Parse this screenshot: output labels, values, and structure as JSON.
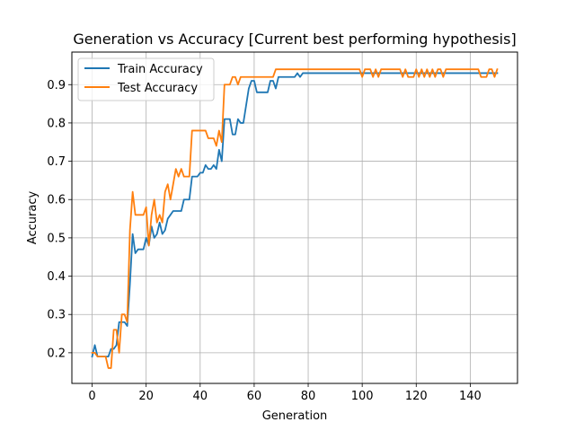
{
  "chart_data": {
    "type": "line",
    "title": "Generation vs Accuracy [Current best performing hypothesis]",
    "xlabel": "Generation",
    "ylabel": "Accuracy",
    "xlim": [
      -7.5,
      157.5
    ],
    "ylim": [
      0.12,
      0.985
    ],
    "xticks": [
      0,
      20,
      40,
      60,
      80,
      100,
      120,
      140
    ],
    "yticks": [
      0.2,
      0.3,
      0.4,
      0.5,
      0.6,
      0.7,
      0.8,
      0.9
    ],
    "ytick_labels": [
      "0.2",
      "0.3",
      "0.4",
      "0.5",
      "0.6",
      "0.7",
      "0.8",
      "0.9"
    ],
    "grid": true,
    "legend_position": "top-left",
    "series": [
      {
        "name": "Train Accuracy",
        "color": "#1f77b4",
        "points": [
          [
            0,
            0.19
          ],
          [
            1,
            0.22
          ],
          [
            2,
            0.19
          ],
          [
            6,
            0.19
          ],
          [
            7,
            0.21
          ],
          [
            8,
            0.21
          ],
          [
            9,
            0.22
          ],
          [
            10,
            0.28
          ],
          [
            12,
            0.28
          ],
          [
            13,
            0.27
          ],
          [
            14,
            0.38
          ],
          [
            15,
            0.51
          ],
          [
            16,
            0.46
          ],
          [
            17,
            0.47
          ],
          [
            19,
            0.47
          ],
          [
            20,
            0.5
          ],
          [
            21,
            0.48
          ],
          [
            22,
            0.53
          ],
          [
            23,
            0.5
          ],
          [
            24,
            0.51
          ],
          [
            25,
            0.54
          ],
          [
            26,
            0.51
          ],
          [
            27,
            0.52
          ],
          [
            28,
            0.55
          ],
          [
            29,
            0.56
          ],
          [
            30,
            0.57
          ],
          [
            33,
            0.57
          ],
          [
            34,
            0.6
          ],
          [
            36,
            0.6
          ],
          [
            37,
            0.66
          ],
          [
            39,
            0.66
          ],
          [
            40,
            0.67
          ],
          [
            41,
            0.67
          ],
          [
            42,
            0.69
          ],
          [
            43,
            0.68
          ],
          [
            44,
            0.68
          ],
          [
            45,
            0.69
          ],
          [
            46,
            0.68
          ],
          [
            47,
            0.73
          ],
          [
            48,
            0.7
          ],
          [
            49,
            0.81
          ],
          [
            51,
            0.81
          ],
          [
            52,
            0.77
          ],
          [
            53,
            0.77
          ],
          [
            54,
            0.81
          ],
          [
            55,
            0.8
          ],
          [
            56,
            0.8
          ],
          [
            58,
            0.89
          ],
          [
            59,
            0.91
          ],
          [
            60,
            0.91
          ],
          [
            61,
            0.88
          ],
          [
            65,
            0.88
          ],
          [
            66,
            0.91
          ],
          [
            67,
            0.91
          ],
          [
            68,
            0.89
          ],
          [
            69,
            0.92
          ],
          [
            75,
            0.92
          ],
          [
            76,
            0.93
          ],
          [
            77,
            0.92
          ],
          [
            78,
            0.93
          ],
          [
            150,
            0.93
          ]
        ]
      },
      {
        "name": "Test Accuracy",
        "color": "#ff7f0e",
        "points": [
          [
            0,
            0.2
          ],
          [
            1,
            0.2
          ],
          [
            2,
            0.19
          ],
          [
            5,
            0.19
          ],
          [
            6,
            0.16
          ],
          [
            7,
            0.16
          ],
          [
            8,
            0.26
          ],
          [
            9,
            0.26
          ],
          [
            10,
            0.2
          ],
          [
            11,
            0.3
          ],
          [
            12,
            0.3
          ],
          [
            13,
            0.28
          ],
          [
            14,
            0.52
          ],
          [
            15,
            0.62
          ],
          [
            16,
            0.56
          ],
          [
            19,
            0.56
          ],
          [
            20,
            0.58
          ],
          [
            21,
            0.48
          ],
          [
            22,
            0.56
          ],
          [
            23,
            0.6
          ],
          [
            24,
            0.54
          ],
          [
            25,
            0.56
          ],
          [
            26,
            0.54
          ],
          [
            27,
            0.62
          ],
          [
            28,
            0.64
          ],
          [
            29,
            0.6
          ],
          [
            30,
            0.64
          ],
          [
            31,
            0.68
          ],
          [
            32,
            0.66
          ],
          [
            33,
            0.68
          ],
          [
            34,
            0.66
          ],
          [
            36,
            0.66
          ],
          [
            37,
            0.78
          ],
          [
            42,
            0.78
          ],
          [
            43,
            0.76
          ],
          [
            45,
            0.76
          ],
          [
            46,
            0.74
          ],
          [
            47,
            0.78
          ],
          [
            48,
            0.75
          ],
          [
            49,
            0.9
          ],
          [
            51,
            0.9
          ],
          [
            52,
            0.92
          ],
          [
            53,
            0.92
          ],
          [
            54,
            0.9
          ],
          [
            55,
            0.92
          ],
          [
            67,
            0.92
          ],
          [
            68,
            0.94
          ],
          [
            99,
            0.94
          ],
          [
            100,
            0.92
          ],
          [
            101,
            0.94
          ],
          [
            103,
            0.94
          ],
          [
            104,
            0.92
          ],
          [
            105,
            0.94
          ],
          [
            106,
            0.92
          ],
          [
            107,
            0.94
          ],
          [
            114,
            0.94
          ],
          [
            115,
            0.92
          ],
          [
            116,
            0.94
          ],
          [
            117,
            0.92
          ],
          [
            119,
            0.92
          ],
          [
            120,
            0.94
          ],
          [
            121,
            0.92
          ],
          [
            122,
            0.94
          ],
          [
            123,
            0.92
          ],
          [
            124,
            0.94
          ],
          [
            125,
            0.92
          ],
          [
            126,
            0.94
          ],
          [
            127,
            0.92
          ],
          [
            128,
            0.94
          ],
          [
            129,
            0.94
          ],
          [
            130,
            0.92
          ],
          [
            131,
            0.94
          ],
          [
            143,
            0.94
          ],
          [
            144,
            0.92
          ],
          [
            146,
            0.92
          ],
          [
            147,
            0.94
          ],
          [
            148,
            0.94
          ],
          [
            149,
            0.92
          ],
          [
            150,
            0.94
          ]
        ]
      }
    ]
  }
}
